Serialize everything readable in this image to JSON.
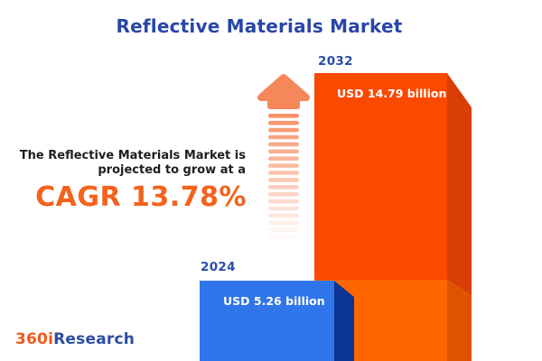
{
  "title": "Reflective Materials Market",
  "subtitle": {
    "line1": "The Reflective Materials Market is",
    "line2": "projected to grow at a",
    "cagr_text": "CAGR 13.78%"
  },
  "chart_data": {
    "type": "bar",
    "title": "Reflective Materials Market",
    "categories": [
      "2024",
      "2032"
    ],
    "values": [
      5.26,
      14.79
    ],
    "value_labels": [
      "USD 5.26 billion",
      "USD 14.79 billion"
    ],
    "unit": "USD billion",
    "cagr_percent": 13.78,
    "grid": false,
    "legend_position": "none",
    "bar_colors": [
      "#3075E9",
      "#FF4A00"
    ],
    "style_note": "3D extruded bars; 2032 bar lower segment shaded lighter to mirror 2024 height"
  },
  "icons": [
    {
      "name": "growth-arrow-up-icon",
      "color": "#F5875A"
    }
  ],
  "logo": {
    "prefix": "360i",
    "suffix": "Research"
  },
  "colors": {
    "background": "#FFFFFF",
    "title_blue": "#2746A8",
    "year_label_blue": "#2B4CA8",
    "description_dark": "#1E1E1C",
    "cagr_orange": "#F4621C",
    "bar_2032_face_top": "#FB4900",
    "bar_2032_face_bottom": "#FF6600",
    "bar_2032_bevel_top": "#D93F04",
    "bar_2032_bevel_bottom": "#DE5200",
    "bar_2024_face": "#3075E9",
    "bar_2024_bevel": "#0B3493",
    "arrow_orange": "#F5875A",
    "logo_orange": "#F0581D",
    "logo_blue": "#2B4EA2"
  }
}
